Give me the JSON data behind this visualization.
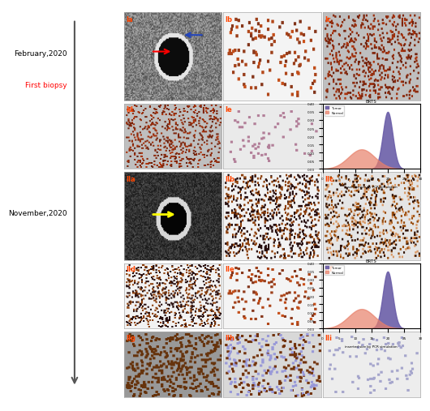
{
  "feb_label": "February,2020",
  "nov_label": "November,2020",
  "biopsy_label": "First biopsy",
  "label_color": "#FF4500",
  "feb_color": "#000000",
  "nov_color": "#000000",
  "biopsy_color": "#FF0000",
  "background": "#ffffff"
}
